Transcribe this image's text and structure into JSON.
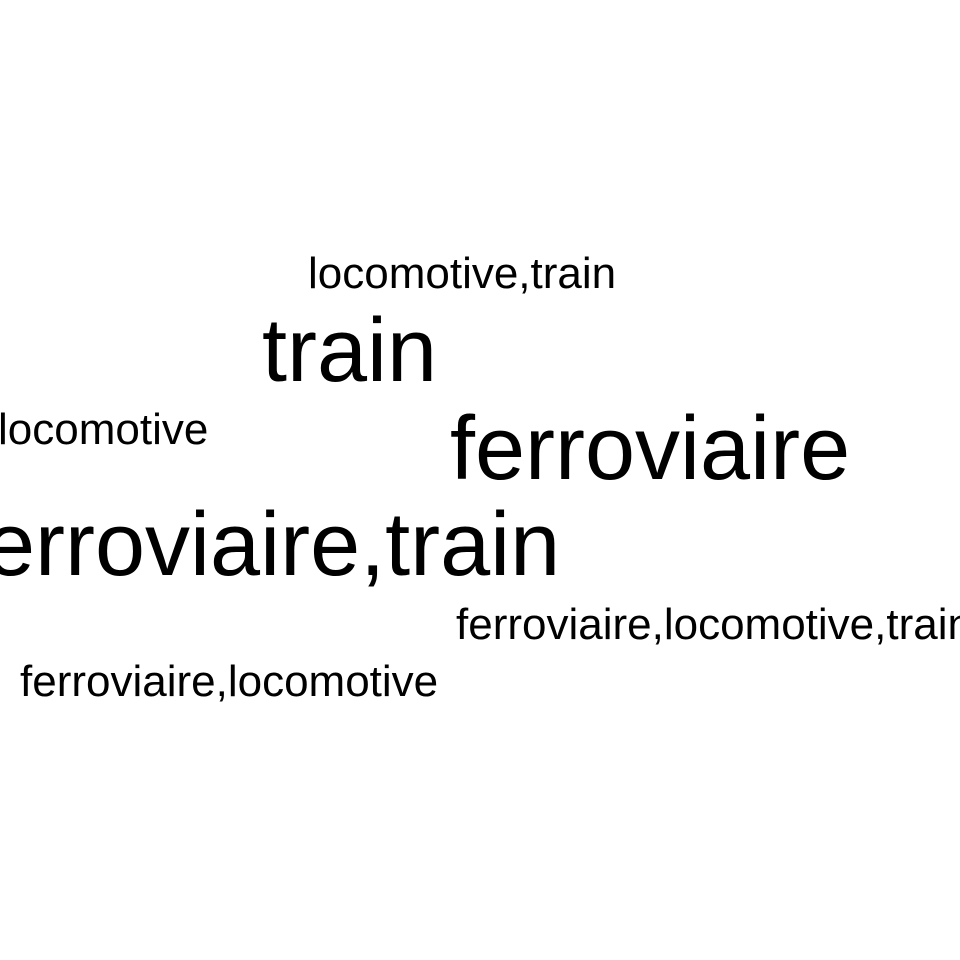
{
  "word_cloud": {
    "words": [
      {
        "text": "locomotive,train"
      },
      {
        "text": "train"
      },
      {
        "text": "locomotive"
      },
      {
        "text": "ferroviaire"
      },
      {
        "text": "ferroviaire,train"
      },
      {
        "text": "ferroviaire,locomotive,train"
      },
      {
        "text": "ferroviaire,locomotive"
      }
    ]
  },
  "colors": {
    "background": "#ffffff",
    "text": "#000000"
  }
}
